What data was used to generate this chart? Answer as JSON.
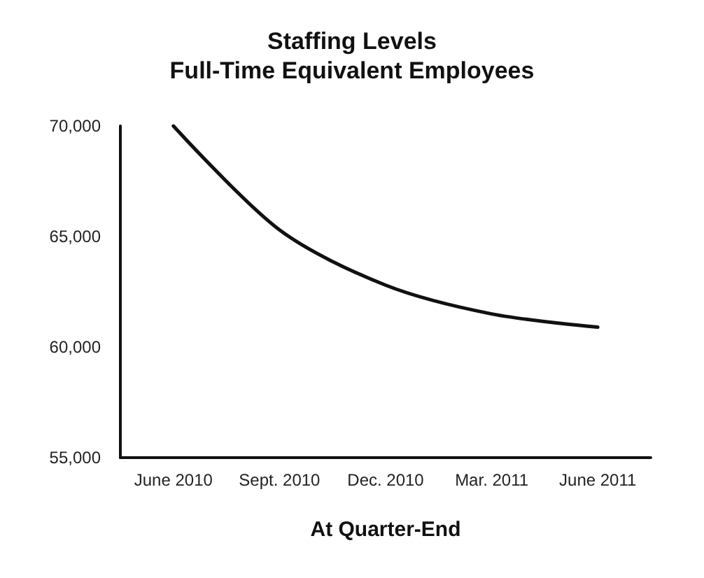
{
  "chart_data": {
    "type": "line",
    "title": "Staffing Levels",
    "subtitle": "Full-Time Equivalent Employees",
    "xlabel": "At Quarter-End",
    "categories": [
      "June 2010",
      "Sept. 2010",
      "Dec. 2010",
      "Mar. 2011",
      "June 2011"
    ],
    "series": [
      {
        "color": "#111111",
        "values": [
          70000,
          65300,
          62800,
          61500,
          60900
        ]
      }
    ],
    "ylim": [
      55000,
      70000
    ],
    "yticks": [
      {
        "value": 55000,
        "label": "55,000"
      },
      {
        "value": 60000,
        "label": "60,000"
      },
      {
        "value": 65000,
        "label": "65,000"
      },
      {
        "value": 70000,
        "label": "70,000"
      }
    ],
    "grid": false,
    "marker": "none",
    "line_style": "solid"
  }
}
